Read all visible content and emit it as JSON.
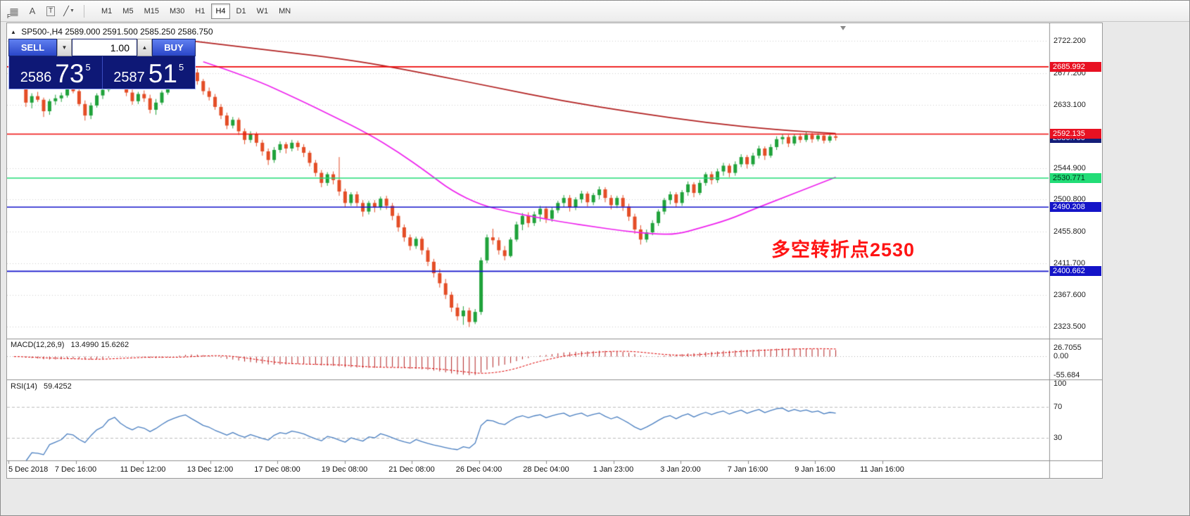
{
  "toolbar": {
    "icons": [
      {
        "name": "chart-objects-icon",
        "glyph": "▦",
        "badge": "F"
      },
      {
        "name": "text-tool-icon",
        "glyph": "A"
      },
      {
        "name": "text-label-icon",
        "glyph": "T"
      },
      {
        "name": "line-tool-icon",
        "glyph": "╱",
        "caret": "▼"
      }
    ],
    "timeframes": [
      "M1",
      "M5",
      "M15",
      "M30",
      "H1",
      "H4",
      "D1",
      "W1",
      "MN"
    ],
    "active_timeframe": "H4"
  },
  "chart_header": {
    "expand_glyph": "▲",
    "symbol": "SP500-,H4",
    "ohlc": "2589.000 2591.500 2585.250 2586.750"
  },
  "trade_panel": {
    "sell_label": "SELL",
    "buy_label": "BUY",
    "volume": "1.00",
    "down_glyph": "▼",
    "up_glyph": "▲",
    "sell_price": {
      "big_left": "2586",
      "large": "73",
      "sup": "5"
    },
    "buy_price": {
      "big_left": "2587",
      "large": "51",
      "sup": "5"
    }
  },
  "annotation": {
    "text": "多空转折点2530",
    "color": "#ff1414"
  },
  "theme": {
    "panel_navy": "#0e1876",
    "button_blue": "#2a46c8",
    "toolbar_gray": "#ececec"
  },
  "price_axis": {
    "gridline_labels": [
      "2722.200",
      "2677.200",
      "2633.100",
      "2544.900",
      "2500.800",
      "2455.800",
      "2411.700",
      "2367.600",
      "2323.500"
    ],
    "badges": [
      {
        "text": "2586.750",
        "price": 2586.75,
        "bg": "#141e78",
        "fg": "#ffffff"
      },
      {
        "text": "2685.992",
        "price": 2685.992,
        "bg": "#e81122",
        "fg": "#ffffff"
      },
      {
        "text": "2592.135",
        "price": 2592.135,
        "bg": "#e81122",
        "fg": "#ffffff"
      },
      {
        "text": "2530.771",
        "price": 2530.771,
        "bg": "#22dd77",
        "fg": "#00331a"
      },
      {
        "text": "2490.208",
        "price": 2490.208,
        "bg": "#1414c8",
        "fg": "#ffffff"
      },
      {
        "text": "2400.662",
        "price": 2400.662,
        "bg": "#1414c8",
        "fg": "#ffffff"
      }
    ]
  },
  "indicators": {
    "macd": {
      "label": "MACD(12,26,9)",
      "values": "13.4990 15.6262",
      "axis": [
        "26.7055",
        "0.00",
        "-55.684"
      ]
    },
    "rsi": {
      "label": "RSI(14)",
      "value": "59.4252",
      "axis": [
        "100",
        "70",
        "30"
      ]
    }
  },
  "time_axis": {
    "labels": [
      "5 Dec 2018",
      "7 Dec 16:00",
      "11 Dec 12:00",
      "13 Dec 12:00",
      "17 Dec 08:00",
      "19 Dec 08:00",
      "21 Dec 08:00",
      "26 Dec 04:00",
      "28 Dec 04:00",
      "1 Jan 23:00",
      "3 Jan 20:00",
      "7 Jan 16:00",
      "9 Jan 16:00",
      "11 Jan 16:00"
    ]
  },
  "chart_data": {
    "type": "candlestick",
    "symbol": "SP500-",
    "timeframe": "H4",
    "ohlc_current": {
      "open": "2589.000",
      "high": "2591.500",
      "low": "2585.250",
      "close": "2586.750"
    },
    "bid_price": 2586.75,
    "hlines": [
      {
        "price": 2685.992,
        "color": "#ee0a0a"
      },
      {
        "price": 2592.135,
        "color": "#ee0a0a"
      },
      {
        "price": 2530.771,
        "color": "#22dd77"
      },
      {
        "price": 2490.208,
        "color": "#1414cc"
      },
      {
        "price": 2400.662,
        "color": "#1414cc"
      }
    ],
    "colors": {
      "up": "#1fa23a",
      "down": "#e44d26",
      "ma_slow": "#b22222",
      "ma_fast": "#ee22ee",
      "rsi": "#4a7fc1",
      "macd_hist": "#b22222",
      "macd_signal": "#e00000"
    },
    "macd_params": {
      "fast": 12,
      "slow": 26,
      "signal": 9
    },
    "rsi_params": {
      "period": 14,
      "levels": [
        70,
        30
      ]
    },
    "overlays": [
      {
        "name": "ma-slow",
        "color_key": "ma_slow",
        "anchors": [
          [
            30,
            2722
          ],
          [
            40,
            2712
          ],
          [
            57,
            2696
          ],
          [
            70,
            2676
          ],
          [
            81,
            2658
          ],
          [
            93,
            2638
          ],
          [
            105,
            2622
          ],
          [
            117,
            2608
          ],
          [
            129,
            2598
          ],
          [
            139,
            2593
          ]
        ]
      },
      {
        "name": "ma-fast",
        "color_key": "ma_fast",
        "anchors": [
          [
            32,
            2693
          ],
          [
            40,
            2671
          ],
          [
            48,
            2641
          ],
          [
            54,
            2617
          ],
          [
            60,
            2592
          ],
          [
            65,
            2567
          ],
          [
            70,
            2538
          ],
          [
            74,
            2513
          ],
          [
            79,
            2493
          ],
          [
            84,
            2483
          ],
          [
            89,
            2475
          ],
          [
            93,
            2469
          ],
          [
            98,
            2463
          ],
          [
            103,
            2457
          ],
          [
            108,
            2453
          ],
          [
            112,
            2452
          ],
          [
            116,
            2461
          ],
          [
            121,
            2473
          ],
          [
            125,
            2487
          ],
          [
            130,
            2503
          ],
          [
            135,
            2519
          ],
          [
            139,
            2532
          ]
        ]
      }
    ],
    "candles": [
      [
        2662,
        2672,
        2656,
        2668
      ],
      [
        2668,
        2675,
        2660,
        2664
      ],
      [
        2664,
        2666,
        2630,
        2636
      ],
      [
        2636,
        2649,
        2628,
        2645
      ],
      [
        2645,
        2651,
        2637,
        2640
      ],
      [
        2640,
        2643,
        2616,
        2624
      ],
      [
        2624,
        2641,
        2619,
        2638
      ],
      [
        2638,
        2647,
        2633,
        2642
      ],
      [
        2642,
        2650,
        2637,
        2646
      ],
      [
        2646,
        2661,
        2643,
        2656
      ],
      [
        2656,
        2663,
        2649,
        2652
      ],
      [
        2652,
        2655,
        2631,
        2634
      ],
      [
        2634,
        2639,
        2611,
        2618
      ],
      [
        2618,
        2636,
        2613,
        2632
      ],
      [
        2632,
        2649,
        2629,
        2646
      ],
      [
        2646,
        2657,
        2641,
        2654
      ],
      [
        2654,
        2679,
        2651,
        2676
      ],
      [
        2676,
        2692,
        2670,
        2686
      ],
      [
        2686,
        2689,
        2661,
        2666
      ],
      [
        2666,
        2671,
        2645,
        2650
      ],
      [
        2650,
        2655,
        2633,
        2638
      ],
      [
        2638,
        2651,
        2634,
        2648
      ],
      [
        2648,
        2653,
        2637,
        2642
      ],
      [
        2642,
        2647,
        2621,
        2626
      ],
      [
        2626,
        2641,
        2619,
        2636
      ],
      [
        2636,
        2653,
        2633,
        2650
      ],
      [
        2650,
        2667,
        2647,
        2664
      ],
      [
        2664,
        2677,
        2659,
        2674
      ],
      [
        2674,
        2687,
        2669,
        2684
      ],
      [
        2684,
        2696,
        2679,
        2690
      ],
      [
        2690,
        2693,
        2673,
        2678
      ],
      [
        2678,
        2683,
        2661,
        2666
      ],
      [
        2666,
        2669,
        2647,
        2652
      ],
      [
        2652,
        2657,
        2639,
        2644
      ],
      [
        2644,
        2648,
        2626,
        2630
      ],
      [
        2630,
        2634,
        2613,
        2618
      ],
      [
        2618,
        2622,
        2599,
        2604
      ],
      [
        2604,
        2616,
        2600,
        2612
      ],
      [
        2612,
        2615,
        2591,
        2596
      ],
      [
        2596,
        2600,
        2578,
        2584
      ],
      [
        2584,
        2596,
        2580,
        2592
      ],
      [
        2592,
        2595,
        2575,
        2580
      ],
      [
        2580,
        2584,
        2562,
        2568
      ],
      [
        2568,
        2572,
        2549,
        2556
      ],
      [
        2556,
        2574,
        2552,
        2570
      ],
      [
        2570,
        2582,
        2566,
        2578
      ],
      [
        2578,
        2581,
        2565,
        2572
      ],
      [
        2572,
        2584,
        2568,
        2580
      ],
      [
        2580,
        2583,
        2569,
        2574
      ],
      [
        2574,
        2578,
        2560,
        2566
      ],
      [
        2566,
        2569,
        2547,
        2552
      ],
      [
        2552,
        2556,
        2533,
        2538
      ],
      [
        2538,
        2542,
        2518,
        2524
      ],
      [
        2524,
        2539,
        2520,
        2536
      ],
      [
        2536,
        2540,
        2522,
        2528
      ],
      [
        2528,
        2560,
        2506,
        2512
      ],
      [
        2512,
        2516,
        2490,
        2496
      ],
      [
        2496,
        2511,
        2492,
        2508
      ],
      [
        2508,
        2512,
        2491,
        2496
      ],
      [
        2496,
        2500,
        2477,
        2484
      ],
      [
        2484,
        2499,
        2480,
        2496
      ],
      [
        2496,
        2500,
        2483,
        2490
      ],
      [
        2490,
        2505,
        2486,
        2502
      ],
      [
        2502,
        2506,
        2487,
        2492
      ],
      [
        2492,
        2496,
        2472,
        2478
      ],
      [
        2478,
        2482,
        2456,
        2462
      ],
      [
        2462,
        2466,
        2442,
        2448
      ],
      [
        2448,
        2452,
        2430,
        2436
      ],
      [
        2436,
        2449,
        2432,
        2446
      ],
      [
        2446,
        2449,
        2424,
        2430
      ],
      [
        2430,
        2434,
        2408,
        2414
      ],
      [
        2414,
        2418,
        2392,
        2398
      ],
      [
        2398,
        2404,
        2378,
        2384
      ],
      [
        2384,
        2390,
        2362,
        2368
      ],
      [
        2368,
        2372,
        2344,
        2350
      ],
      [
        2350,
        2356,
        2332,
        2338
      ],
      [
        2338,
        2352,
        2326,
        2346
      ],
      [
        2346,
        2350,
        2323,
        2330
      ],
      [
        2330,
        2348,
        2327,
        2344
      ],
      [
        2344,
        2420,
        2340,
        2416
      ],
      [
        2416,
        2452,
        2412,
        2448
      ],
      [
        2448,
        2460,
        2438,
        2444
      ],
      [
        2444,
        2448,
        2424,
        2430
      ],
      [
        2430,
        2436,
        2416,
        2422
      ],
      [
        2422,
        2448,
        2420,
        2445
      ],
      [
        2445,
        2470,
        2442,
        2466
      ],
      [
        2466,
        2482,
        2458,
        2478
      ],
      [
        2478,
        2483,
        2462,
        2468
      ],
      [
        2468,
        2484,
        2464,
        2480
      ],
      [
        2480,
        2492,
        2470,
        2488
      ],
      [
        2488,
        2491,
        2468,
        2474
      ],
      [
        2474,
        2490,
        2470,
        2486
      ],
      [
        2486,
        2499,
        2482,
        2496
      ],
      [
        2496,
        2507,
        2490,
        2503
      ],
      [
        2503,
        2507,
        2484,
        2490
      ],
      [
        2490,
        2504,
        2486,
        2501
      ],
      [
        2501,
        2513,
        2496,
        2509
      ],
      [
        2509,
        2512,
        2491,
        2497
      ],
      [
        2497,
        2510,
        2493,
        2507
      ],
      [
        2507,
        2519,
        2501,
        2515
      ],
      [
        2515,
        2518,
        2497,
        2503
      ],
      [
        2503,
        2507,
        2487,
        2493
      ],
      [
        2493,
        2506,
        2489,
        2503
      ],
      [
        2503,
        2507,
        2485,
        2491
      ],
      [
        2491,
        2495,
        2471,
        2477
      ],
      [
        2477,
        2481,
        2453,
        2459
      ],
      [
        2459,
        2465,
        2438,
        2445
      ],
      [
        2445,
        2459,
        2441,
        2455
      ],
      [
        2455,
        2472,
        2451,
        2468
      ],
      [
        2468,
        2487,
        2464,
        2484
      ],
      [
        2484,
        2503,
        2480,
        2500
      ],
      [
        2500,
        2512,
        2494,
        2508
      ],
      [
        2508,
        2511,
        2490,
        2496
      ],
      [
        2496,
        2514,
        2492,
        2511
      ],
      [
        2511,
        2526,
        2506,
        2522
      ],
      [
        2522,
        2525,
        2504,
        2510
      ],
      [
        2510,
        2528,
        2507,
        2524
      ],
      [
        2524,
        2539,
        2520,
        2536
      ],
      [
        2536,
        2540,
        2522,
        2528
      ],
      [
        2528,
        2544,
        2524,
        2540
      ],
      [
        2540,
        2552,
        2534,
        2548
      ],
      [
        2548,
        2551,
        2532,
        2538
      ],
      [
        2538,
        2554,
        2534,
        2550
      ],
      [
        2550,
        2564,
        2546,
        2560
      ],
      [
        2560,
        2563,
        2544,
        2550
      ],
      [
        2550,
        2566,
        2547,
        2562
      ],
      [
        2562,
        2576,
        2558,
        2572
      ],
      [
        2572,
        2575,
        2556,
        2562
      ],
      [
        2562,
        2578,
        2559,
        2574
      ],
      [
        2574,
        2589,
        2570,
        2585
      ],
      [
        2585,
        2592,
        2578,
        2588
      ],
      [
        2588,
        2591,
        2574,
        2579
      ],
      [
        2579,
        2592,
        2576,
        2589
      ],
      [
        2589,
        2593,
        2580,
        2584
      ],
      [
        2584,
        2595,
        2581,
        2591
      ],
      [
        2591,
        2594,
        2580,
        2585
      ],
      [
        2585,
        2593,
        2582,
        2590
      ],
      [
        2590,
        2592,
        2579,
        2583
      ],
      [
        2583,
        2592,
        2580,
        2589
      ],
      [
        2589,
        2592,
        2583,
        2587
      ]
    ]
  }
}
